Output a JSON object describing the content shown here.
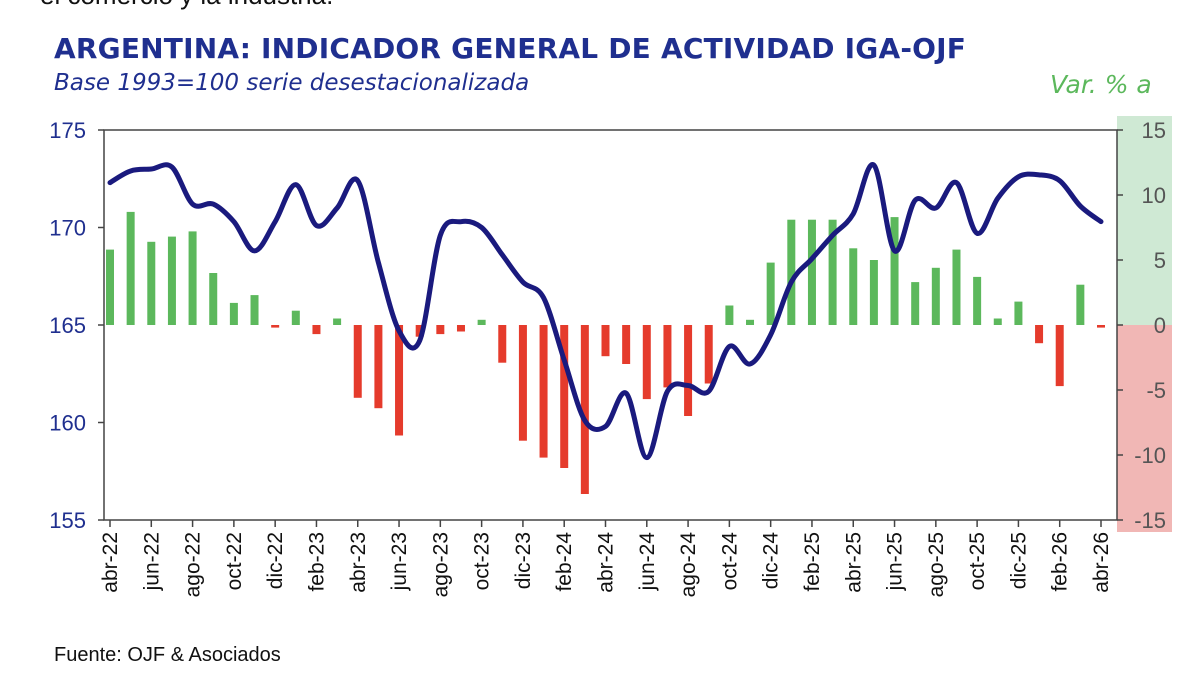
{
  "header": {
    "cut_text": "el comercio y la industria.",
    "title": "ARGENTINA: INDICADOR GENERAL DE ACTIVIDAD IGA-OJF",
    "subtitle": "Base 1993=100 serie desestacionalizada",
    "right_title": "Var. % a"
  },
  "footer": {
    "source": "Fuente: OJF & Asociados"
  },
  "colors": {
    "line": "#1a1a7e",
    "bar_positive": "#5cb85c",
    "bar_negative": "#e53b2c",
    "band_positive": "#cfe9d4",
    "band_negative": "#f1b7b5",
    "axis_left_text": "#1f2f8f",
    "axis_right_text": "#555555"
  },
  "chart_data": {
    "type": "bar+line",
    "periods": [
      "abr-22",
      "may-22",
      "jun-22",
      "jul-22",
      "ago-22",
      "sep-22",
      "oct-22",
      "nov-22",
      "dic-22",
      "ene-23",
      "feb-23",
      "mar-23",
      "abr-23",
      "may-23",
      "jun-23",
      "jul-23",
      "ago-23",
      "sep-23",
      "oct-23",
      "nov-23",
      "dic-23",
      "ene-24",
      "feb-24",
      "mar-24",
      "abr-24",
      "may-24",
      "jun-24",
      "jul-24",
      "ago-24",
      "sep-24",
      "oct-24",
      "nov-24",
      "dic-24",
      "ene-25",
      "feb-25",
      "mar-25",
      "abr-25",
      "may-25",
      "jun-25",
      "jul-25",
      "ago-25",
      "sep-25",
      "oct-25",
      "nov-25",
      "dic-25",
      "ene-26",
      "feb-26",
      "mar-26",
      "abr-26"
    ],
    "x_tick_labels": [
      "abr-22",
      "jun-22",
      "ago-22",
      "oct-22",
      "dic-22",
      "feb-23",
      "abr-23",
      "jun-23",
      "ago-23",
      "oct-23",
      "dic-23",
      "feb-24",
      "abr-24",
      "jun-24",
      "ago-24",
      "oct-24",
      "dic-24",
      "feb-25",
      "abr-25",
      "jun-25",
      "ago-25",
      "oct-25",
      "dic-25",
      "feb-26",
      "abr-26"
    ],
    "series": [
      {
        "type": "line",
        "axis": "left",
        "values": [
          172.3,
          172.9,
          173.0,
          173.1,
          171.2,
          171.2,
          170.3,
          168.8,
          170.3,
          172.2,
          170.1,
          171.0,
          172.4,
          168.2,
          164.7,
          164.2,
          169.6,
          170.3,
          170.0,
          168.6,
          167.2,
          166.4,
          163.2,
          160.1,
          159.8,
          161.5,
          158.2,
          161.6,
          161.9,
          161.6,
          163.9,
          163.0,
          164.5,
          167.2,
          168.4,
          169.6,
          170.7,
          173.2,
          168.8,
          171.4,
          171.0,
          172.3,
          169.7,
          171.5,
          172.6,
          172.7,
          172.4,
          171.1,
          170.3
        ]
      },
      {
        "type": "bar",
        "axis": "right",
        "values": [
          5.8,
          8.7,
          6.4,
          6.8,
          7.2,
          4.0,
          1.7,
          2.3,
          -0.2,
          1.1,
          -0.7,
          0.5,
          -5.6,
          -6.4,
          -8.5,
          -0.9,
          -0.7,
          -0.5,
          0.4,
          -2.9,
          -8.9,
          -10.2,
          -11.0,
          -13.0,
          -2.4,
          -3.0,
          -5.7,
          -4.8,
          -7.0,
          -4.5,
          1.5,
          0.4,
          4.8,
          8.1,
          8.1,
          8.1,
          5.9,
          5.0,
          8.3,
          3.3,
          4.4,
          5.8,
          3.7,
          0.5,
          1.8,
          -1.4,
          -4.7,
          3.1,
          -0.2
        ]
      }
    ],
    "y_left": {
      "min": 155,
      "max": 175,
      "ticks": [
        175,
        170,
        165,
        160,
        155
      ]
    },
    "y_right": {
      "min": -15,
      "max": 15,
      "ticks": [
        15,
        10,
        5,
        0,
        -5,
        -10,
        -15
      ]
    },
    "grid": false,
    "legend": "none"
  }
}
